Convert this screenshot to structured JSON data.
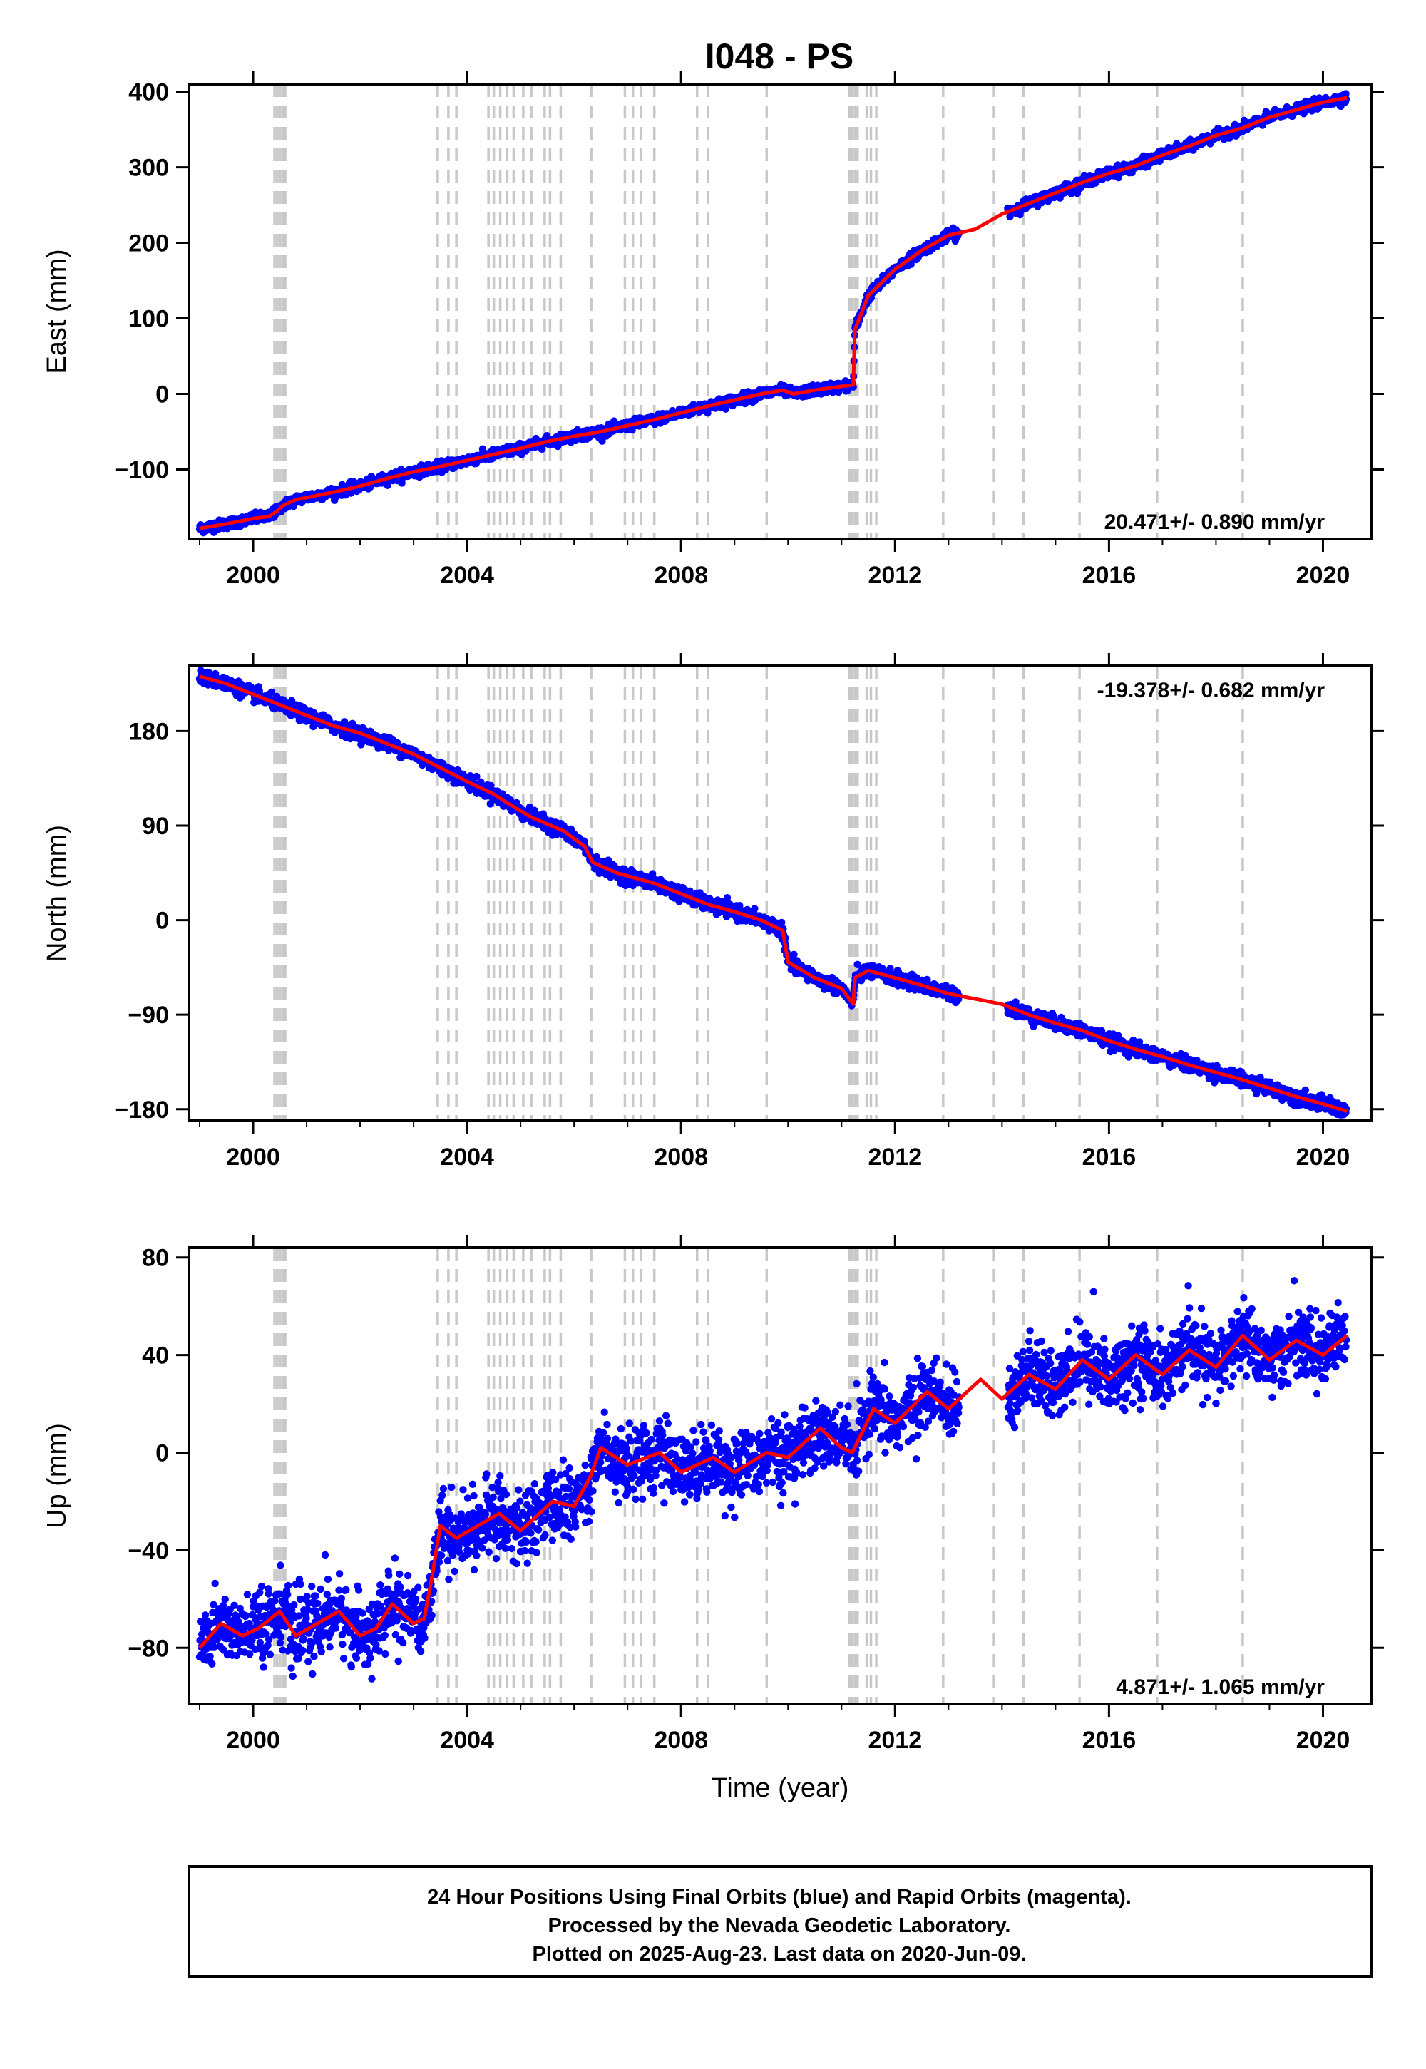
{
  "title": "I048 - PS",
  "footer": {
    "line1": "24 Hour Positions Using Final Orbits (blue) and Rapid Orbits (magenta).",
    "line2": "Processed by the Nevada Geodetic Laboratory.",
    "line3": "Plotted on 2025-Aug-23. Last data on 2020-Jun-09."
  },
  "colors": {
    "final_orbits": "#0000ff",
    "model": "#ff0000",
    "steps": "#c8c8c8",
    "axes": "#000000"
  },
  "chart_data": [
    {
      "type": "scatter",
      "ylabel": "East (mm)",
      "xlabel": "",
      "xlim": [
        1998.8,
        2020.9
      ],
      "ylim": [
        -192,
        410
      ],
      "xticks": [
        2000,
        2004,
        2008,
        2012,
        2016,
        2020
      ],
      "yticks": [
        -100,
        0,
        100,
        200,
        300,
        400
      ],
      "rate_text": "20.471+/- 0.890 mm/yr",
      "rate_position": "bottom-right",
      "series": [
        {
          "x": [
            1999.0,
            1999.5,
            2000.0,
            2000.3,
            2000.45,
            2000.55,
            2000.8,
            2001.5,
            2002.0,
            2002.5,
            2003.0,
            2003.5,
            2004.0,
            2004.5,
            2005.0,
            2005.5,
            2006.0,
            2006.5,
            2007.0,
            2007.5,
            2008.0,
            2008.5,
            2009.0,
            2009.5,
            2009.9,
            2010.1,
            2010.5,
            2011.0,
            2011.22,
            2011.25,
            2011.5,
            2012.0,
            2012.5,
            2013.0,
            2013.5,
            2014.0,
            2014.5,
            2015.0,
            2015.5,
            2016.0,
            2016.5,
            2017.0,
            2017.5,
            2018.0,
            2018.5,
            2019.0,
            2019.5,
            2020.0,
            2020.45
          ],
          "y": [
            -178,
            -172,
            -165,
            -162,
            -155,
            -148,
            -140,
            -130,
            -122,
            -112,
            -103,
            -96,
            -88,
            -80,
            -72,
            -63,
            -56,
            -50,
            -42,
            -34,
            -25,
            -16,
            -8,
            0,
            5,
            0,
            5,
            10,
            12,
            85,
            130,
            165,
            190,
            210,
            218,
            238,
            252,
            266,
            280,
            292,
            302,
            316,
            328,
            342,
            352,
            366,
            376,
            386,
            392
          ]
        }
      ]
    },
    {
      "type": "scatter",
      "ylabel": "North (mm)",
      "xlabel": "",
      "xlim": [
        1998.8,
        2020.9
      ],
      "ylim": [
        -191,
        242
      ],
      "xticks": [
        2000,
        2004,
        2008,
        2012,
        2016,
        2020
      ],
      "yticks": [
        -180,
        -90,
        0,
        90,
        180
      ],
      "rate_text": "-19.378+/- 0.682 mm/yr",
      "rate_position": "top-right",
      "series": [
        {
          "x": [
            1999.0,
            1999.5,
            2000.0,
            2000.5,
            2001.0,
            2001.5,
            2002.0,
            2002.5,
            2003.0,
            2003.5,
            2004.0,
            2004.5,
            2004.8,
            2005.2,
            2005.8,
            2006.2,
            2006.35,
            2006.8,
            2007.5,
            2008.0,
            2008.5,
            2009.0,
            2009.5,
            2009.9,
            2010.0,
            2010.5,
            2011.0,
            2011.22,
            2011.25,
            2011.5,
            2012.0,
            2012.5,
            2013.0,
            2013.5,
            2014.0,
            2014.5,
            2015.0,
            2015.5,
            2016.0,
            2016.5,
            2017.0,
            2017.5,
            2018.0,
            2018.5,
            2019.0,
            2019.5,
            2020.0,
            2020.45
          ],
          "y": [
            232,
            225,
            215,
            205,
            195,
            185,
            178,
            168,
            158,
            145,
            132,
            120,
            110,
            98,
            85,
            70,
            55,
            45,
            35,
            25,
            15,
            8,
            0,
            -10,
            -40,
            -55,
            -65,
            -80,
            -55,
            -48,
            -55,
            -62,
            -70,
            -75,
            -80,
            -90,
            -98,
            -105,
            -115,
            -123,
            -130,
            -138,
            -145,
            -152,
            -160,
            -168,
            -175,
            -182
          ]
        }
      ]
    },
    {
      "type": "scatter",
      "ylabel": "Up (mm)",
      "xlabel": "Time (year)",
      "xlim": [
        1998.8,
        2020.9
      ],
      "ylim": [
        -103,
        84
      ],
      "xticks": [
        2000,
        2004,
        2008,
        2012,
        2016,
        2020
      ],
      "yticks": [
        -80,
        -40,
        0,
        40,
        80
      ],
      "rate_text": "4.871+/- 1.065 mm/yr",
      "rate_position": "bottom-right",
      "series": [
        {
          "x": [
            1999.0,
            1999.4,
            1999.8,
            2000.1,
            2000.5,
            2000.8,
            2001.2,
            2001.6,
            2002.0,
            2002.3,
            2002.6,
            2003.0,
            2003.2,
            2003.35,
            2003.5,
            2003.8,
            2004.2,
            2004.6,
            2005.0,
            2005.6,
            2006.0,
            2006.3,
            2006.5,
            2007.0,
            2007.6,
            2008.0,
            2008.6,
            2009.0,
            2009.6,
            2010.0,
            2010.6,
            2011.0,
            2011.2,
            2011.6,
            2012.0,
            2012.6,
            2013.0,
            2013.6,
            2014.0,
            2014.5,
            2015.0,
            2015.5,
            2016.0,
            2016.5,
            2017.0,
            2017.5,
            2018.0,
            2018.5,
            2019.0,
            2019.5,
            2020.0,
            2020.45
          ],
          "y": [
            -80,
            -70,
            -75,
            -72,
            -65,
            -75,
            -70,
            -65,
            -75,
            -72,
            -62,
            -70,
            -68,
            -50,
            -30,
            -35,
            -30,
            -25,
            -32,
            -20,
            -22,
            -10,
            2,
            -5,
            0,
            -8,
            -2,
            -8,
            0,
            -2,
            10,
            2,
            0,
            18,
            12,
            25,
            18,
            30,
            22,
            32,
            26,
            38,
            30,
            40,
            32,
            42,
            35,
            48,
            38,
            46,
            40,
            48
          ]
        }
      ]
    }
  ],
  "step_lines_year": [
    2000.4,
    2000.45,
    2000.5,
    2000.55,
    2000.6,
    2003.45,
    2003.65,
    2003.8,
    2004.4,
    2004.5,
    2004.62,
    2004.75,
    2004.87,
    2005.05,
    2005.2,
    2005.45,
    2005.55,
    2005.75,
    2006.32,
    2006.95,
    2007.1,
    2007.25,
    2007.5,
    2008.3,
    2008.5,
    2009.6,
    2011.15,
    2011.2,
    2011.25,
    2011.3,
    2011.47,
    2011.55,
    2011.65,
    2012.9,
    2013.85,
    2014.4,
    2015.45,
    2016.9,
    2018.5
  ]
}
